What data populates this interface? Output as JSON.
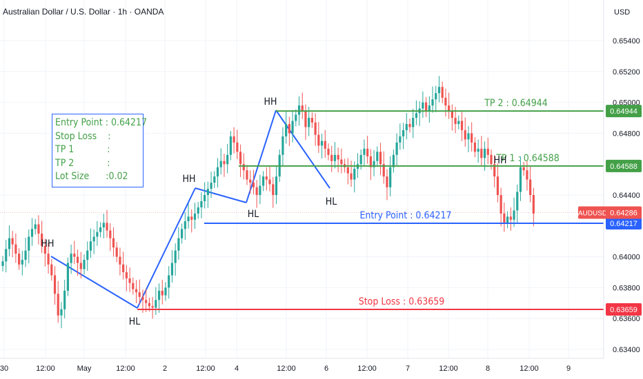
{
  "header": {
    "title": "Australian Dollar / U.S. Dollar · 1h · OANDA"
  },
  "price_axis": {
    "currency": "USD",
    "ticks": [
      "0.65400",
      "0.65200",
      "0.65000",
      "0.64800",
      "0.64400",
      "0.64000",
      "0.63800",
      "0.63600",
      "0.63400"
    ]
  },
  "time_axis": {
    "ticks": [
      "30",
      "12:00",
      "May",
      "12:00",
      "2",
      "12:00",
      "4",
      "12:00",
      "6",
      "12:00",
      "7",
      "12:00",
      "8",
      "12:00",
      "9"
    ]
  },
  "info_box": {
    "lines": [
      "Entry Point : 0.64217",
      "Stop Loss    :",
      "TP 1            :",
      "TP 2            :",
      "Lot Size      :0.02"
    ]
  },
  "levels": {
    "tp2": {
      "label": "TP 2 : 0.64944",
      "tag": "0.64944",
      "color": "#43a047"
    },
    "tp1": {
      "label": "TP 1 : 0.64588",
      "tag": "0.64588",
      "color": "#43a047"
    },
    "entry": {
      "label": "Entry Point : 0.64217",
      "tag": "0.64217",
      "color": "#2962ff"
    },
    "stop": {
      "label": "Stop Loss : 0.63659",
      "tag": "0.63659",
      "color": "#f23645"
    }
  },
  "current": {
    "symbol": "AUDUSD",
    "price": "0.64286"
  },
  "pattern_labels": [
    "HH",
    "HL",
    "HH",
    "HL",
    "HH",
    "HL",
    "HH"
  ],
  "colors": {
    "up": "#26a69a",
    "down": "#ef5350",
    "swing": "#2962ff"
  },
  "chart_data": {
    "type": "candlestick",
    "title": "Australian Dollar / U.S. Dollar · 1h · OANDA",
    "ylim": [
      0.6333,
      0.6563
    ],
    "ylabel": "USD",
    "close_series": [
      0.6397,
      0.6405,
      0.6412,
      0.6408,
      0.6402,
      0.6395,
      0.6398,
      0.6404,
      0.6413,
      0.6418,
      0.6421,
      0.6415,
      0.6407,
      0.6402,
      0.6395,
      0.6388,
      0.6376,
      0.6362,
      0.6366,
      0.6378,
      0.6396,
      0.6402,
      0.64,
      0.6396,
      0.6392,
      0.6398,
      0.6404,
      0.641,
      0.6413,
      0.6416,
      0.6419,
      0.6422,
      0.6417,
      0.6412,
      0.6406,
      0.64,
      0.6395,
      0.639,
      0.6386,
      0.6383,
      0.6379,
      0.6377,
      0.6374,
      0.6372,
      0.637,
      0.6368,
      0.6367,
      0.6372,
      0.6378,
      0.6375,
      0.638,
      0.6388,
      0.6396,
      0.6404,
      0.6412,
      0.6418,
      0.6423,
      0.6426,
      0.6424,
      0.6428,
      0.6432,
      0.6436,
      0.644,
      0.6444,
      0.6448,
      0.6452,
      0.6458,
      0.6462,
      0.646,
      0.6466,
      0.6478,
      0.6474,
      0.6468,
      0.646,
      0.6456,
      0.645,
      0.6448,
      0.6445,
      0.644,
      0.6446,
      0.6452,
      0.645,
      0.6447,
      0.644,
      0.6452,
      0.6466,
      0.6478,
      0.6486,
      0.648,
      0.6488,
      0.6492,
      0.6498,
      0.6494,
      0.6484,
      0.649,
      0.6487,
      0.6479,
      0.6472,
      0.6475,
      0.647,
      0.6466,
      0.6462,
      0.6466,
      0.6463,
      0.646,
      0.6458,
      0.6454,
      0.645,
      0.6457,
      0.646,
      0.6466,
      0.647,
      0.6465,
      0.6458,
      0.6462,
      0.6468,
      0.646,
      0.6452,
      0.6445,
      0.6458,
      0.6466,
      0.6474,
      0.6478,
      0.6482,
      0.6486,
      0.6484,
      0.649,
      0.6493,
      0.6496,
      0.65,
      0.6494,
      0.6498,
      0.6502,
      0.6506,
      0.651,
      0.6503,
      0.6498,
      0.6494,
      0.649,
      0.6486,
      0.6488,
      0.6482,
      0.6476,
      0.648,
      0.6474,
      0.6468,
      0.647,
      0.6464,
      0.647,
      0.6466,
      0.646,
      0.6452,
      0.644,
      0.6428,
      0.6422,
      0.6426,
      0.6424,
      0.643,
      0.6442,
      0.6458,
      0.6456,
      0.645,
      0.644,
      0.6428
    ]
  }
}
